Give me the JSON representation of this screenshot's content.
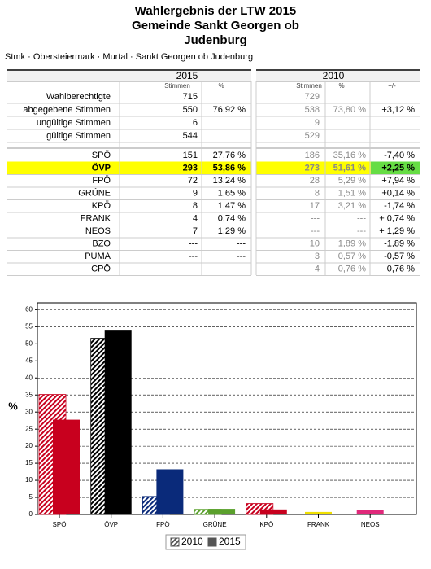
{
  "header": {
    "title_lines": [
      "Wahlergebnis der LTW 2015",
      "Gemeinde Sankt Georgen ob",
      "Judenburg"
    ],
    "breadcrumb": "Stmk · Obersteiermark · Murtal · Sankt Georgen ob Judenburg"
  },
  "table": {
    "groups": [
      {
        "year": "2015",
        "columns": [
          "Stimmen",
          "%"
        ]
      },
      {
        "year": "2010",
        "columns": [
          "Stimmen",
          "%",
          "+/-"
        ]
      }
    ],
    "summary_rows": [
      {
        "label": "Wahlberechtigte",
        "cells": [
          "715",
          null,
          "729",
          null,
          null
        ]
      },
      {
        "label": "abgegebene Stimmen",
        "cells": [
          "550",
          "76,92 %",
          "538",
          "73,80 %",
          "+3,12 %"
        ]
      },
      {
        "label": "ungültige Stimmen",
        "cells": [
          "6",
          null,
          "9",
          null,
          null
        ]
      },
      {
        "label": "gültige Stimmen",
        "cells": [
          "544",
          null,
          "529",
          null,
          null
        ]
      }
    ],
    "party_rows": [
      {
        "label": "SPÖ",
        "cells": [
          "151",
          "27,76 %",
          "186",
          "35,16 %",
          "-7,40 %"
        ]
      },
      {
        "label": "ÖVP",
        "cells": [
          "293",
          "53,86 %",
          "273",
          "51,61 %",
          "+2,25 %"
        ],
        "highlighted": true
      },
      {
        "label": "FPÖ",
        "cells": [
          "72",
          "13,24 %",
          "28",
          "5,29 %",
          "+7,94 %"
        ]
      },
      {
        "label": "GRÜNE",
        "cells": [
          "9",
          "1,65 %",
          "8",
          "1,51 %",
          "+0,14 %"
        ]
      },
      {
        "label": "KPÖ",
        "cells": [
          "8",
          "1,47 %",
          "17",
          "3,21 %",
          "-1,74 %"
        ]
      },
      {
        "label": "FRANK",
        "cells": [
          "4",
          "0,74 %",
          "---",
          "---",
          "+ 0,74 %"
        ]
      },
      {
        "label": "NEOS",
        "cells": [
          "7",
          "1,29 %",
          "---",
          "---",
          "+ 1,29 %"
        ]
      },
      {
        "label": "BZÖ",
        "cells": [
          "---",
          "---",
          "10",
          "1,89 %",
          "-1,89 %"
        ]
      },
      {
        "label": "PUMA",
        "cells": [
          "---",
          "---",
          "3",
          "0,57 %",
          "-0,57 %"
        ]
      },
      {
        "label": "CPÖ",
        "cells": [
          "---",
          "---",
          "4",
          "0,76 %",
          "-0,76 %"
        ]
      }
    ]
  },
  "chart_data": {
    "type": "bar",
    "ylabel": "%",
    "categories": [
      "SPÖ",
      "ÖVP",
      "FPÖ",
      "GRÜNE",
      "KPÖ",
      "FRANK",
      "NEOS"
    ],
    "colors": [
      "#c8001e",
      "#000000",
      "#0a2a7a",
      "#5aa02c",
      "#c8001e",
      "#f0e000",
      "#e0287a"
    ],
    "series": [
      {
        "name": "2010",
        "style": "hatched",
        "color": "#555555",
        "values": [
          35.16,
          51.61,
          5.29,
          1.51,
          3.21,
          null,
          null
        ]
      },
      {
        "name": "2015",
        "style": "solid",
        "color": "#555555",
        "values": [
          27.76,
          53.86,
          13.24,
          1.65,
          1.47,
          0.74,
          1.29
        ]
      }
    ],
    "ylim": [
      0,
      62
    ],
    "yticks": [
      0,
      5,
      10,
      15,
      20,
      25,
      30,
      35,
      40,
      45,
      50,
      55,
      60
    ],
    "grid": true
  }
}
